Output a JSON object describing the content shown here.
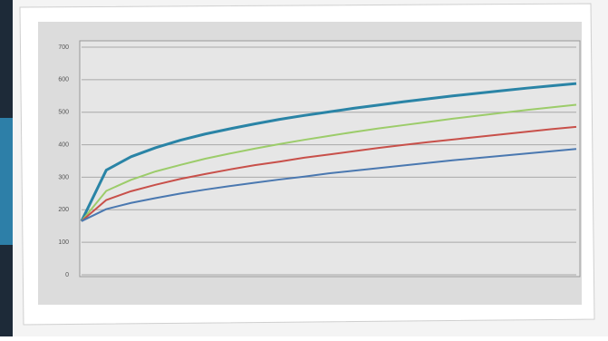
{
  "chart_data": {
    "type": "line",
    "x": [
      0,
      1,
      2,
      3,
      4,
      5,
      6,
      7,
      8,
      9,
      10,
      11,
      12,
      13,
      14,
      15,
      16,
      17,
      18,
      19,
      20
    ],
    "xlim": [
      0,
      20
    ],
    "ylim": [
      0,
      700
    ],
    "yticks": [
      0,
      100,
      200,
      300,
      400,
      500,
      600,
      700
    ],
    "grid": true,
    "series": [
      {
        "color": "#2a84a6",
        "values": [
          165,
          322,
          363,
          391,
          414,
          433,
          449,
          464,
          478,
          490,
          501,
          512,
          522,
          532,
          541,
          550,
          558,
          566,
          574,
          581,
          588
        ]
      },
      {
        "color": "#9ccc6a",
        "values": [
          165,
          258,
          292,
          318,
          338,
          357,
          373,
          388,
          402,
          415,
          427,
          439,
          450,
          460,
          470,
          480,
          489,
          498,
          507,
          515,
          523
        ]
      },
      {
        "color": "#c8504a",
        "values": [
          165,
          230,
          257,
          277,
          295,
          310,
          324,
          337,
          348,
          360,
          370,
          380,
          390,
          399,
          408,
          416,
          424,
          432,
          440,
          448,
          455
        ]
      },
      {
        "color": "#4a78b0",
        "values": [
          165,
          202,
          221,
          236,
          250,
          262,
          273,
          283,
          293,
          302,
          312,
          320,
          328,
          336,
          344,
          352,
          359,
          366,
          373,
          380,
          387
        ]
      }
    ]
  }
}
